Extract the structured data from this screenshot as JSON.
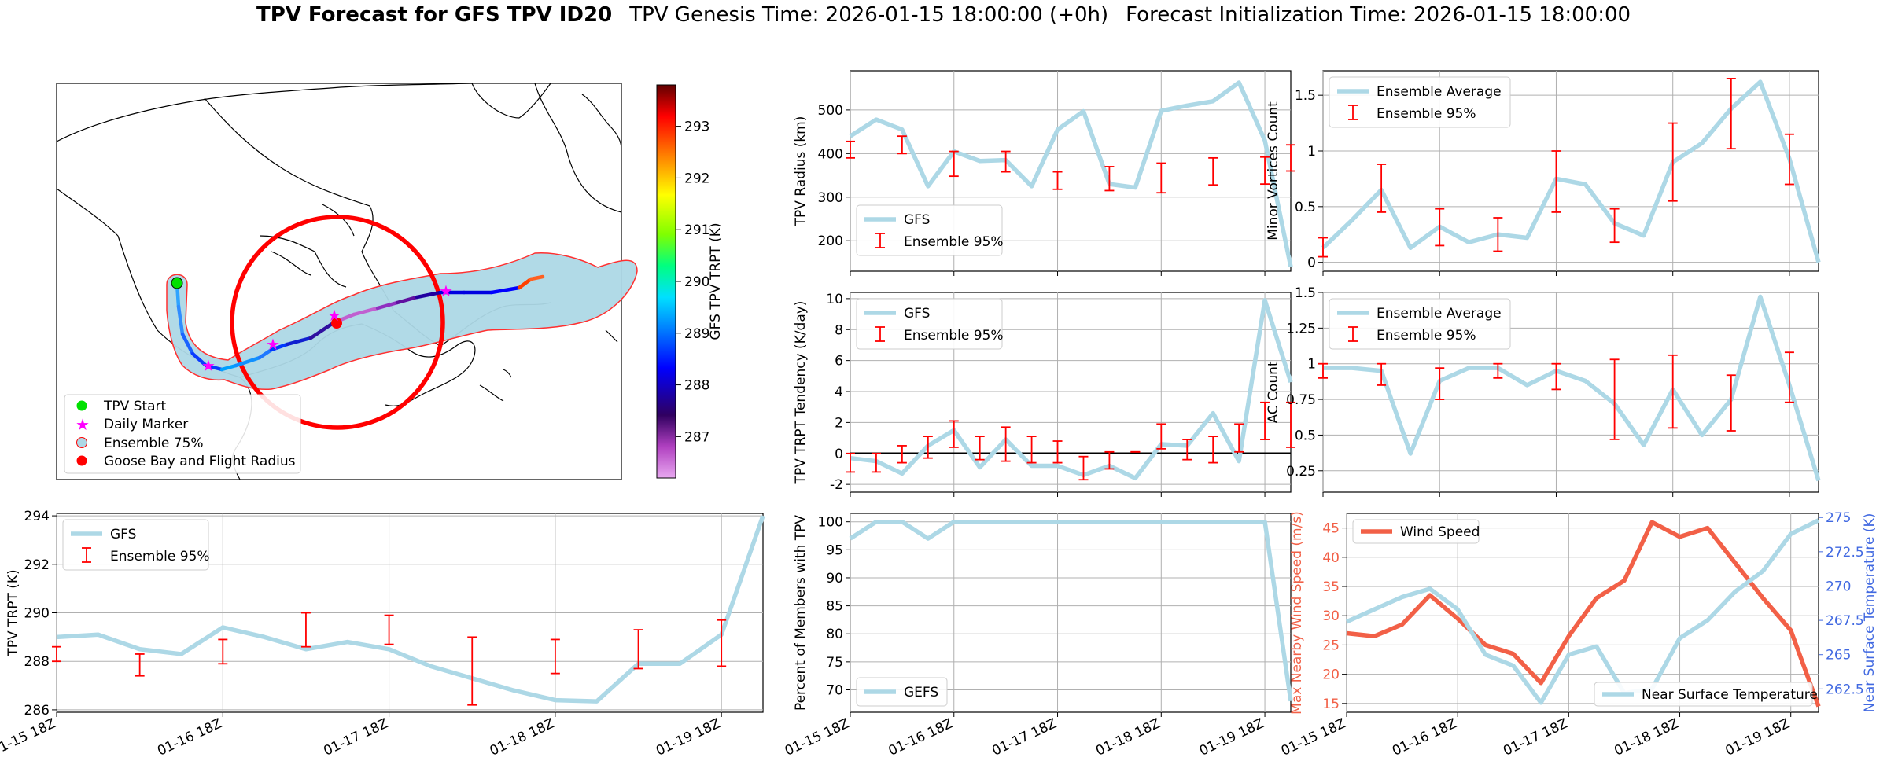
{
  "header": {
    "title_bold": "TPV Forecast for GFS TPV ID20",
    "genesis": "TPV Genesis Time: 2026-01-15 18:00:00 (+0h)",
    "init": "Forecast Initialization Time: 2026-01-15 18:00:00"
  },
  "colors": {
    "gfs": "#add8e6",
    "ensemble": "#ff0000",
    "wind": "#f26047",
    "temp_axis": "#4169e1",
    "marker_start": "#00ff00",
    "marker_daily": "#ff00ff",
    "goose_bay": "#ff0000"
  },
  "x_ticks": [
    "01-15 18Z",
    "01-16 18Z",
    "01-17 18Z",
    "01-18 18Z",
    "01-19 18Z"
  ],
  "map_panel": {
    "legend": [
      "TPV Start",
      "Daily Marker",
      "Ensemble 75%",
      "Goose Bay and Flight Radius"
    ],
    "colorbar_label": "GFS TPV TRPT (K)",
    "colorbar_ticks": [
      287,
      288,
      289,
      290,
      291,
      292,
      293
    ],
    "colorbar_range": [
      286.2,
      293.8
    ]
  },
  "chart_data": [
    {
      "id": "radius",
      "type": "line",
      "ylabel": "TPV Radius (km)",
      "ylim": [
        130,
        590
      ],
      "yticks": [
        200,
        300,
        400,
        500
      ],
      "x": [
        0,
        1,
        2,
        3,
        4,
        5,
        6,
        7,
        8,
        9,
        10,
        11,
        12,
        13,
        14,
        15,
        16,
        17
      ],
      "series": [
        {
          "name": "GFS",
          "values": [
            440,
            478,
            455,
            325,
            405,
            383,
            385,
            325,
            455,
            497,
            330,
            322,
            498,
            510,
            520,
            563,
            430,
            140
          ]
        }
      ],
      "ensemble": {
        "name": "Ensemble 95%",
        "x": [
          0,
          2,
          4,
          6,
          8,
          10,
          12,
          14,
          16,
          17
        ],
        "low": [
          390,
          400,
          348,
          358,
          318,
          315,
          310,
          328,
          330,
          360
        ],
        "high": [
          428,
          440,
          405,
          405,
          358,
          370,
          378,
          390,
          392,
          420
        ]
      },
      "legend": "lower left"
    },
    {
      "id": "tendency",
      "type": "line",
      "ylabel": "TPV TRPT Tendency (K/day)",
      "ylim": [
        -2.5,
        10.4
      ],
      "yticks": [
        -2,
        0,
        2,
        4,
        6,
        8,
        10
      ],
      "zero_line": true,
      "x": [
        0,
        1,
        2,
        3,
        4,
        5,
        6,
        7,
        8,
        9,
        10,
        11,
        12,
        13,
        14,
        15,
        16,
        17
      ],
      "series": [
        {
          "name": "GFS",
          "values": [
            -0.3,
            -0.5,
            -1.3,
            0.5,
            1.5,
            -0.9,
            0.9,
            -0.8,
            -0.8,
            -1.4,
            -0.8,
            -1.6,
            0.6,
            0.5,
            2.6,
            -0.5,
            9.9,
            4.6
          ]
        }
      ],
      "ensemble": {
        "name": "Ensemble 95%",
        "x": [
          0,
          1,
          2,
          3,
          4,
          5,
          6,
          7,
          8,
          9,
          10,
          11,
          12,
          13,
          14,
          15,
          16,
          17
        ],
        "low": [
          -1.2,
          -1.2,
          -0.6,
          -0.3,
          0.4,
          -0.4,
          -0.5,
          -0.6,
          -0.6,
          -1.7,
          -1.0,
          0.1,
          0.3,
          -0.4,
          -0.6,
          0.1,
          0.9,
          0.4
        ],
        "high": [
          0.0,
          0.0,
          0.5,
          1.1,
          2.1,
          1.1,
          1.7,
          1.1,
          0.8,
          -0.2,
          0.1,
          0.1,
          1.9,
          0.9,
          1.1,
          1.9,
          3.3,
          3.3
        ]
      },
      "legend": "upper left"
    },
    {
      "id": "members",
      "type": "line",
      "ylabel": "Percent of Members with TPV",
      "ylim": [
        66,
        101.5
      ],
      "yticks": [
        70,
        75,
        80,
        85,
        90,
        95,
        100
      ],
      "x": [
        0,
        1,
        2,
        3,
        4,
        5,
        6,
        7,
        8,
        9,
        10,
        11,
        12,
        13,
        14,
        15,
        16,
        17
      ],
      "series": [
        {
          "name": "GEFS",
          "values": [
            97,
            100,
            100,
            97,
            100,
            100,
            100,
            100,
            100,
            100,
            100,
            100,
            100,
            100,
            100,
            100,
            100,
            68
          ]
        }
      ],
      "legend": "lower left"
    },
    {
      "id": "minor",
      "type": "line",
      "ylabel": "Minor Vortices Count",
      "ylim": [
        -0.08,
        1.72
      ],
      "yticks": [
        0.0,
        0.5,
        1.0,
        1.5
      ],
      "x": [
        0,
        1,
        2,
        3,
        4,
        5,
        6,
        7,
        8,
        9,
        10,
        11,
        12,
        13,
        14,
        15,
        16,
        17
      ],
      "series": [
        {
          "name": "Ensemble Average",
          "values": [
            0.13,
            0.38,
            0.65,
            0.13,
            0.32,
            0.18,
            0.25,
            0.22,
            0.75,
            0.7,
            0.35,
            0.24,
            0.9,
            1.07,
            1.38,
            1.62,
            0.93,
            0.0
          ]
        }
      ],
      "ensemble": {
        "name": "Ensemble 95%",
        "x": [
          0,
          2,
          4,
          6,
          8,
          10,
          12,
          14,
          16
        ],
        "low": [
          0.05,
          0.45,
          0.15,
          0.1,
          0.45,
          0.18,
          0.55,
          1.02,
          0.7
        ],
        "high": [
          0.22,
          0.88,
          0.48,
          0.4,
          1.0,
          0.48,
          1.25,
          1.65,
          1.15
        ]
      },
      "legend": "upper left"
    },
    {
      "id": "ac",
      "type": "line",
      "ylabel": "AC Count",
      "ylim": [
        0.1,
        1.5
      ],
      "yticks": [
        0.25,
        0.5,
        0.75,
        1.0,
        1.25,
        1.5
      ],
      "x": [
        0,
        1,
        2,
        3,
        4,
        5,
        6,
        7,
        8,
        9,
        10,
        11,
        12,
        13,
        14,
        15,
        16,
        17
      ],
      "series": [
        {
          "name": "Ensemble Average",
          "values": [
            0.97,
            0.97,
            0.95,
            0.37,
            0.88,
            0.97,
            0.97,
            0.85,
            0.95,
            0.88,
            0.72,
            0.43,
            0.82,
            0.5,
            0.75,
            1.47,
            0.85,
            0.18
          ]
        }
      ],
      "ensemble": {
        "name": "Ensemble 95%",
        "x": [
          0,
          2,
          4,
          6,
          8,
          10,
          12,
          14,
          16
        ],
        "low": [
          0.9,
          0.85,
          0.75,
          0.9,
          0.82,
          0.47,
          0.55,
          0.53,
          0.73
        ],
        "high": [
          1.0,
          1.0,
          0.97,
          1.0,
          1.0,
          1.03,
          1.06,
          0.92,
          1.08
        ]
      },
      "legend": "upper left"
    },
    {
      "id": "trpt",
      "type": "line",
      "ylabel": "TPV TRPT (K)",
      "ylim": [
        285.9,
        294.1
      ],
      "yticks": [
        286,
        288,
        290,
        292,
        294
      ],
      "x": [
        0,
        1,
        2,
        3,
        4,
        5,
        6,
        7,
        8,
        9,
        10,
        11,
        12,
        13,
        14,
        15,
        16,
        17
      ],
      "series": [
        {
          "name": "GFS",
          "values": [
            289.0,
            289.1,
            288.5,
            288.3,
            289.4,
            289.0,
            288.5,
            288.8,
            288.5,
            287.8,
            287.3,
            286.8,
            286.4,
            286.35,
            287.9,
            287.9,
            289.1,
            294.0
          ]
        }
      ],
      "ensemble": {
        "name": "Ensemble 95%",
        "x": [
          0,
          2,
          4,
          6,
          8,
          10,
          12,
          14,
          16
        ],
        "low": [
          288.0,
          287.4,
          287.9,
          288.6,
          288.7,
          286.2,
          287.5,
          287.7,
          287.8
        ],
        "high": [
          288.6,
          288.3,
          288.9,
          290.0,
          289.9,
          289.0,
          288.9,
          289.3,
          289.7
        ]
      },
      "legend": "upper left"
    },
    {
      "id": "wind_temp",
      "type": "line",
      "ylabel": "Max Nearby Wind Speed (m/s)",
      "ylabel_right": "Near Surface Temperature (K)",
      "ylim": [
        13.5,
        47.5
      ],
      "yticks": [
        15,
        20,
        25,
        30,
        35,
        40,
        45
      ],
      "ylim_right": [
        260.8,
        275.3
      ],
      "yticks_right": [
        262.5,
        265.0,
        267.5,
        270.0,
        272.5,
        275.0
      ],
      "x": [
        0,
        1,
        2,
        3,
        4,
        5,
        6,
        7,
        8,
        9,
        10,
        11,
        12,
        13,
        14,
        15,
        16,
        17
      ],
      "series": [
        {
          "name": "Wind Speed",
          "values": [
            27.0,
            26.5,
            28.5,
            33.5,
            29.5,
            25.0,
            23.5,
            18.5,
            26.5,
            33.0,
            36.0,
            46.0,
            43.5,
            45.0,
            39.0,
            33.0,
            27.5,
            14.5
          ]
        },
        {
          "name": "Near Surface Temperature",
          "values": [
            267.4,
            268.3,
            269.2,
            269.8,
            268.3,
            265.0,
            264.2,
            261.5,
            265.0,
            265.6,
            262.2,
            262.5,
            266.2,
            267.5,
            269.6,
            271.1,
            273.8,
            274.8
          ]
        }
      ],
      "legend": "upper left / lower right"
    }
  ]
}
